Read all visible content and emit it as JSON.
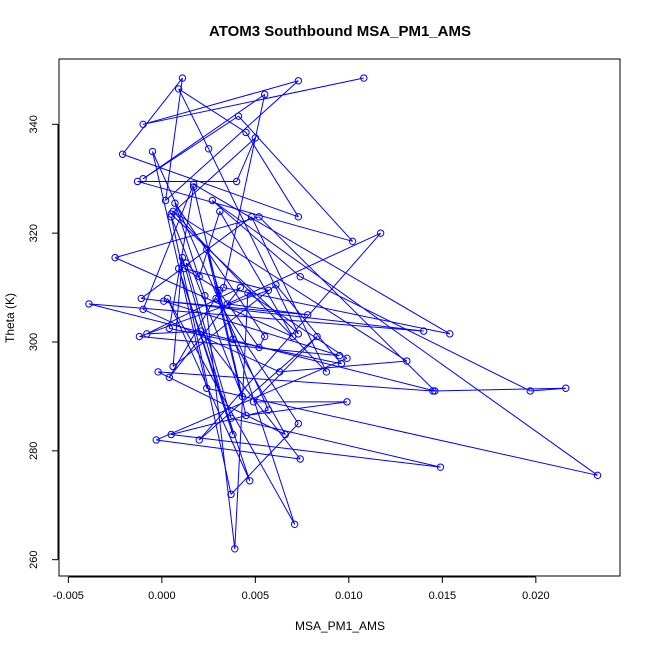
{
  "chart_data": {
    "type": "line",
    "title": "ATOM3 Southbound MSA_PM1_AMS",
    "xlabel": "MSA_PM1_AMS",
    "ylabel": "Theta (K)",
    "xlim": [
      -0.0055,
      0.0245
    ],
    "ylim": [
      257,
      352
    ],
    "xticks": [
      -0.005,
      0.0,
      0.005,
      0.01,
      0.015,
      0.02
    ],
    "xtick_labels": [
      "-0.005",
      "0.000",
      "0.005",
      "0.010",
      "0.015",
      "0.020"
    ],
    "yticks": [
      260,
      280,
      300,
      320,
      340
    ],
    "ytick_labels": [
      "260",
      "280",
      "300",
      "320",
      "340"
    ],
    "marker": "open-circle",
    "series": [
      {
        "color": "#0000ff",
        "x": [
          0.0108,
          -0.001,
          0.0073,
          0.0002,
          0.0011,
          -0.0021,
          0.0073,
          0.0045,
          0.0009,
          0.0025,
          0.0073,
          0.0005,
          0.005,
          0.004,
          -0.0013,
          0.0102,
          0.0041,
          -0.001,
          0.0055,
          0.0033,
          0.0154,
          0.0017,
          -0.001,
          0.0063,
          0.0131,
          0.0006,
          0.0088,
          0.0048,
          -0.0011,
          0.014,
          -0.0039,
          0.0146,
          0.0052,
          -0.0025,
          0.007,
          0.0031,
          0.002,
          0.0013,
          0.0037,
          0.0149,
          0.0005,
          0.0057,
          -0.0005,
          0.0024,
          0.0233,
          0.0027,
          0.0074,
          0.0197,
          0.0216,
          0.0145,
          -0.0002,
          0.0066,
          0.0038,
          0.0024,
          0.0045,
          0.0099,
          0.0049,
          0.0083,
          0.002,
          0.0117,
          0.0035,
          0.0078,
          0.0001,
          0.0095,
          -0.0012,
          0.0057,
          0.0012,
          0.0031,
          0.0004,
          0.0042,
          -0.0008,
          0.0021,
          0.0074,
          -0.0003,
          0.0099,
          0.0046,
          0.0039,
          0.0023,
          0.0007,
          0.0055,
          0.0052,
          0.003,
          0.0071,
          0.0003,
          0.0047,
          0.0009,
          0.0038,
          0.0011,
          0.0006,
          0.0061,
          0.0096,
          0.0004,
          0.0017,
          0.0043,
          0.0005,
          0.0037,
          0.0073,
          0.0029
        ],
        "y": [
          348.5,
          340.0,
          348.0,
          326.0,
          348.5,
          334.5,
          323.0,
          338.5,
          346.5,
          335.5,
          301.5,
          323.5,
          337.5,
          329.5,
          329.5,
          318.5,
          341.5,
          330.0,
          345.5,
          310.0,
          301.5,
          329.0,
          306.0,
          294.5,
          296.5,
          324.0,
          294.5,
          323.0,
          308.0,
          302.0,
          307.0,
          291.0,
          323.0,
          315.5,
          301.0,
          324.0,
          312.0,
          314.5,
          286.0,
          277.0,
          283.0,
          287.5,
          335.0,
          291.5,
          275.5,
          326.0,
          312.0,
          291.0,
          291.5,
          291.0,
          294.5,
          283.0,
          300.5,
          317.0,
          286.5,
          289.0,
          289.0,
          301.0,
          282.0,
          320.0,
          307.0,
          305.0,
          307.5,
          297.5,
          301.0,
          309.5,
          313.5,
          309.5,
          293.5,
          310.0,
          301.5,
          302.0,
          278.5,
          282.0,
          297.0,
          309.0,
          262.0,
          308.5,
          325.5,
          301.0,
          299.0,
          309.5,
          266.5,
          308.0,
          274.5,
          313.5,
          283.0,
          315.5,
          295.5,
          310.5,
          296.0,
          302.5,
          328.5,
          290.0,
          323.0,
          272.0,
          285.0,
          308.0
        ]
      }
    ]
  }
}
